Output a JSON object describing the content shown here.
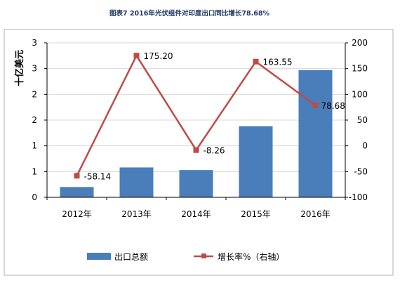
{
  "colors": {
    "bar": "#4A7EBB",
    "line": "#BE4B48",
    "grid": "#D9D9D9",
    "axis": "#000000",
    "frame": "#B0B0B0"
  },
  "chart_data": {
    "type": "bar",
    "title": "图表7  2016年光伏组件对印度出口同比增长78.68%",
    "ylabel_left": "十亿美元",
    "categories": [
      "2012年",
      "2013年",
      "2014年",
      "2015年",
      "2016年"
    ],
    "left_axis": {
      "ticks": [
        0,
        0.5,
        1,
        1.5,
        2,
        2.5,
        3
      ],
      "tick_labels": [
        "0",
        "1",
        "1",
        "2",
        "2",
        "3",
        "3"
      ],
      "ylim": [
        0,
        3
      ]
    },
    "right_axis": {
      "ticks": [
        -100,
        -50,
        0,
        50,
        100,
        150,
        200
      ],
      "tick_labels": [
        "-100",
        "-50",
        "0",
        "50",
        "100",
        "150",
        "200"
      ],
      "ylim": [
        -100,
        200
      ]
    },
    "grid": true,
    "legend_position": "bottom",
    "series": [
      {
        "name": "出口总额",
        "type": "bar",
        "axis": "left",
        "values": [
          0.2,
          0.58,
          0.53,
          1.38,
          2.47
        ]
      },
      {
        "name": "增长率%（右轴）",
        "type": "line",
        "axis": "right",
        "values": [
          -58.14,
          175.2,
          -8.26,
          163.55,
          78.68
        ],
        "data_labels": [
          "-58.14",
          "175.20",
          "-8.26",
          "163.55",
          "78.68"
        ]
      }
    ]
  }
}
